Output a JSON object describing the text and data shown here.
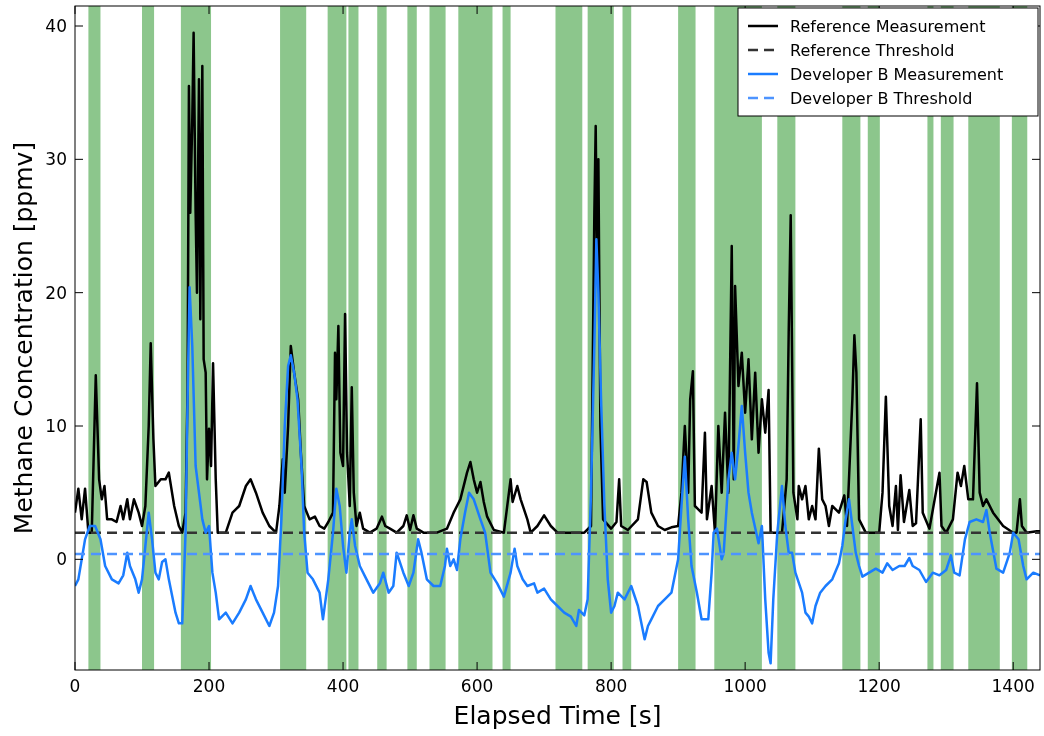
{
  "chart_data": {
    "type": "line",
    "xlabel": "Elapsed Time [s]",
    "ylabel": "Methane Concentration [ppmv]",
    "xlim": [
      0,
      1440
    ],
    "ylim": [
      -8.3,
      41.5
    ],
    "xticks": [
      0,
      200,
      400,
      600,
      800,
      1000,
      1200,
      1400
    ],
    "yticks": [
      0,
      10,
      20,
      30,
      40
    ],
    "grid": false,
    "legend": "top right",
    "bands": [
      {
        "axis": "x",
        "from": 20,
        "to": 38,
        "color": "#8cc68c"
      },
      {
        "axis": "x",
        "from": 100,
        "to": 118,
        "color": "#8cc68c"
      },
      {
        "axis": "x",
        "from": 158,
        "to": 203,
        "color": "#8cc68c"
      },
      {
        "axis": "x",
        "from": 306,
        "to": 345,
        "color": "#8cc68c"
      },
      {
        "axis": "x",
        "from": 377,
        "to": 405,
        "color": "#8cc68c"
      },
      {
        "axis": "x",
        "from": 408,
        "to": 423,
        "color": "#8cc68c"
      },
      {
        "axis": "x",
        "from": 451,
        "to": 465,
        "color": "#8cc68c"
      },
      {
        "axis": "x",
        "from": 496,
        "to": 510,
        "color": "#8cc68c"
      },
      {
        "axis": "x",
        "from": 529,
        "to": 553,
        "color": "#8cc68c"
      },
      {
        "axis": "x",
        "from": 572,
        "to": 623,
        "color": "#8cc68c"
      },
      {
        "axis": "x",
        "from": 638,
        "to": 650,
        "color": "#8cc68c"
      },
      {
        "axis": "x",
        "from": 717,
        "to": 757,
        "color": "#8cc68c"
      },
      {
        "axis": "x",
        "from": 765,
        "to": 804,
        "color": "#8cc68c"
      },
      {
        "axis": "x",
        "from": 817,
        "to": 830,
        "color": "#8cc68c"
      },
      {
        "axis": "x",
        "from": 900,
        "to": 926,
        "color": "#8cc68c"
      },
      {
        "axis": "x",
        "from": 954,
        "to": 1025,
        "color": "#8cc68c"
      },
      {
        "axis": "x",
        "from": 1048,
        "to": 1075,
        "color": "#8cc68c"
      },
      {
        "axis": "x",
        "from": 1145,
        "to": 1172,
        "color": "#8cc68c"
      },
      {
        "axis": "x",
        "from": 1183,
        "to": 1201,
        "color": "#8cc68c"
      },
      {
        "axis": "x",
        "from": 1272,
        "to": 1281,
        "color": "#8cc68c"
      },
      {
        "axis": "x",
        "from": 1292,
        "to": 1311,
        "color": "#8cc68c"
      },
      {
        "axis": "x",
        "from": 1333,
        "to": 1380,
        "color": "#8cc68c"
      },
      {
        "axis": "x",
        "from": 1398,
        "to": 1421,
        "color": "#8cc68c"
      }
    ],
    "series": [
      {
        "name": "Reference Measurement",
        "color": "#000000",
        "line_style": "solid",
        "x": [
          0,
          5,
          10,
          15,
          20,
          25,
          31,
          36,
          40,
          44,
          48,
          55,
          62,
          68,
          72,
          78,
          82,
          88,
          95,
          100,
          105,
          110,
          113,
          117,
          120,
          128,
          135,
          140,
          148,
          155,
          160,
          165,
          168,
          170,
          172,
          175,
          177,
          180,
          182,
          185,
          187,
          190,
          192,
          195,
          197,
          200,
          203,
          206,
          210,
          213,
          218,
          225,
          235,
          245,
          255,
          262,
          270,
          280,
          290,
          300,
          305,
          310,
          313,
          318,
          322,
          327,
          333,
          337,
          342,
          350,
          358,
          365,
          372,
          378,
          385,
          388,
          390,
          393,
          396,
          400,
          403,
          406,
          410,
          413,
          416,
          420,
          425,
          430,
          440,
          450,
          458,
          463,
          470,
          480,
          490,
          495,
          500,
          505,
          510,
          520,
          540,
          555,
          565,
          575,
          585,
          590,
          595,
          600,
          605,
          610,
          615,
          625,
          640,
          650,
          653,
          660,
          665,
          675,
          680,
          690,
          700,
          710,
          720,
          760,
          770,
          775,
          777,
          779,
          781,
          784,
          788,
          800,
          808,
          812,
          815,
          825,
          840,
          848,
          853,
          860,
          870,
          880,
          890,
          900,
          905,
          910,
          915,
          918,
          922,
          925,
          935,
          940,
          943,
          950,
          955,
          960,
          965,
          970,
          975,
          980,
          983,
          985,
          990,
          995,
          1000,
          1005,
          1010,
          1015,
          1020,
          1025,
          1030,
          1035,
          1038,
          1055,
          1062,
          1065,
          1068,
          1072,
          1078,
          1080,
          1085,
          1090,
          1095,
          1100,
          1105,
          1110,
          1115,
          1120,
          1125,
          1130,
          1140,
          1148,
          1152,
          1160,
          1163,
          1166,
          1170,
          1180,
          1200,
          1205,
          1210,
          1215,
          1220,
          1225,
          1228,
          1232,
          1237,
          1245,
          1250,
          1255,
          1262,
          1265,
          1275,
          1290,
          1293,
          1300,
          1310,
          1317,
          1322,
          1327,
          1333,
          1340,
          1346,
          1350,
          1355,
          1360,
          1370,
          1385,
          1400,
          1405,
          1410,
          1413,
          1420,
          1435,
          1440
        ],
        "values": [
          3.5,
          5.3,
          3,
          5.3,
          2,
          2,
          13.8,
          6,
          4.5,
          5.5,
          3,
          3,
          2.8,
          4,
          3,
          4.5,
          3,
          4.5,
          3.5,
          2.5,
          4,
          10,
          16.2,
          9,
          5.5,
          6,
          6,
          6.5,
          4,
          2.5,
          2,
          3.5,
          13,
          35.5,
          26,
          33,
          39.5,
          26,
          20,
          36,
          18,
          37,
          15,
          14,
          6,
          9.8,
          7,
          14.7,
          6,
          2,
          2,
          2,
          3.5,
          4,
          5.5,
          6,
          5,
          3.5,
          2.5,
          2,
          4,
          7.5,
          5,
          10,
          16,
          14,
          12,
          8,
          4,
          3,
          3.2,
          2.5,
          2.3,
          2.8,
          3.5,
          15.5,
          12,
          17.5,
          8,
          7,
          18.4,
          8,
          4,
          12.9,
          5,
          2.5,
          3.5,
          2.3,
          2,
          2.3,
          3.2,
          2.5,
          2.3,
          2,
          2.5,
          3.3,
          2.2,
          3.3,
          2.3,
          2,
          2,
          2.3,
          3.5,
          4.5,
          6.5,
          7.3,
          6,
          5,
          5.8,
          4.3,
          3.2,
          2.2,
          2,
          6,
          4.3,
          5.5,
          4.5,
          3,
          2,
          2.5,
          3.3,
          2.5,
          2,
          2,
          2.5,
          26,
          32.5,
          22,
          30,
          10,
          3,
          2.3,
          2.8,
          6,
          2.5,
          2.2,
          3,
          6,
          5.8,
          3.5,
          2.5,
          2.2,
          2.4,
          2.5,
          5,
          10,
          5,
          12,
          14.1,
          4,
          3.5,
          9.5,
          3,
          5.5,
          2,
          10,
          5,
          11,
          5,
          23.5,
          6,
          20.5,
          13,
          15.5,
          11,
          15,
          9,
          14,
          8,
          12,
          9.5,
          12.7,
          2,
          2,
          6,
          17,
          25.8,
          5,
          3,
          5.5,
          4.5,
          5.5,
          3,
          4,
          3,
          8.3,
          4.5,
          4,
          2.5,
          4,
          3.5,
          4.8,
          2.5,
          12,
          16.8,
          14,
          3,
          2,
          2,
          5,
          12.2,
          4,
          2.5,
          5.5,
          2.2,
          6.3,
          2.8,
          5.2,
          2.5,
          2.7,
          10.5,
          3.5,
          2.3,
          6.5,
          2.5,
          2,
          3,
          6.5,
          5.5,
          7,
          4.5,
          4.5,
          13.2,
          5,
          4,
          4.5,
          3.5,
          2.5,
          2,
          2,
          4.5,
          2.5,
          2,
          2.1,
          2.1
        ]
      },
      {
        "name": "Reference Threshold",
        "color": "#333333",
        "line_style": "dashed",
        "x": [
          0,
          1440
        ],
        "values": [
          2,
          2
        ]
      },
      {
        "name": "Developer B Measurement",
        "color": "#1a7cff",
        "line_style": "solid",
        "x": [
          0,
          5,
          10,
          15,
          22,
          30,
          38,
          45,
          55,
          65,
          72,
          78,
          82,
          90,
          95,
          100,
          105,
          110,
          115,
          120,
          125,
          130,
          135,
          140,
          150,
          155,
          160,
          165,
          168,
          171,
          175,
          180,
          185,
          190,
          195,
          200,
          205,
          210,
          215,
          225,
          235,
          245,
          255,
          262,
          270,
          280,
          290,
          297,
          303,
          308,
          313,
          318,
          322,
          327,
          332,
          338,
          342,
          347,
          355,
          365,
          370,
          378,
          385,
          390,
          395,
          400,
          405,
          410,
          413,
          418,
          425,
          435,
          445,
          455,
          460,
          468,
          475,
          480,
          490,
          498,
          505,
          512,
          517,
          525,
          535,
          545,
          552,
          555,
          560,
          565,
          570,
          575,
          582,
          588,
          595,
          605,
          612,
          620,
          630,
          640,
          650,
          656,
          660,
          668,
          675,
          685,
          690,
          700,
          710,
          720,
          730,
          740,
          748,
          752,
          760,
          765,
          770,
          775,
          778,
          781,
          785,
          790,
          795,
          800,
          805,
          810,
          820,
          830,
          840,
          850,
          855,
          860,
          870,
          880,
          890,
          900,
          905,
          910,
          915,
          920,
          928,
          935,
          945,
          950,
          953,
          958,
          965,
          968,
          975,
          980,
          985,
          990,
          995,
          1000,
          1005,
          1010,
          1020,
          1025,
          1030,
          1035,
          1038,
          1042,
          1048,
          1055,
          1060,
          1065,
          1070,
          1075,
          1085,
          1090,
          1095,
          1100,
          1105,
          1112,
          1120,
          1130,
          1140,
          1145,
          1150,
          1155,
          1160,
          1165,
          1170,
          1175,
          1185,
          1195,
          1205,
          1212,
          1220,
          1230,
          1238,
          1245,
          1250,
          1260,
          1270,
          1280,
          1290,
          1300,
          1307,
          1312,
          1320,
          1328,
          1335,
          1345,
          1355,
          1360,
          1365,
          1375,
          1385,
          1395,
          1400,
          1408,
          1415,
          1420,
          1430,
          1440
        ],
        "values": [
          -2,
          -1.5,
          0,
          1.5,
          2.5,
          2.5,
          1.5,
          -0.5,
          -1.5,
          -1.8,
          -1.2,
          0.5,
          -0.5,
          -1.5,
          -2.5,
          -1.5,
          1,
          3.5,
          1.5,
          -1,
          -1.5,
          -0.2,
          0,
          -1.5,
          -4,
          -4.8,
          -4.8,
          2,
          12,
          20.4,
          16,
          7,
          5,
          3,
          2,
          2.5,
          -1,
          -2.5,
          -4.5,
          -4,
          -4.8,
          -4,
          -3,
          -2,
          -3,
          -4,
          -5,
          -4,
          -2,
          3,
          10,
          14.5,
          15.3,
          14,
          12,
          7,
          2,
          -1,
          -1.5,
          -2.5,
          -4.5,
          -1.5,
          2,
          5.3,
          4,
          1,
          -1,
          2,
          3,
          1,
          -0.5,
          -1.5,
          -2.5,
          -1.8,
          -1,
          -2.5,
          -2,
          0.5,
          -1,
          -2,
          -1,
          1.5,
          0.5,
          -1.5,
          -2,
          -2,
          -0.5,
          0.8,
          -0.5,
          0,
          -0.8,
          1.5,
          3.5,
          5,
          4.5,
          3,
          2,
          -1,
          -1.8,
          -2.8,
          -1,
          0.8,
          -0.5,
          -1.5,
          -2,
          -1.8,
          -2.5,
          -2.2,
          -3,
          -3.5,
          -4,
          -4.3,
          -5,
          -3.8,
          -4.2,
          -3,
          5,
          16,
          24,
          20,
          12,
          4,
          -1.5,
          -4,
          -3.5,
          -2.5,
          -3,
          -2,
          -3.5,
          -6,
          -5,
          -4.5,
          -3.5,
          -3,
          -2.5,
          0,
          4,
          7.7,
          3,
          -0.5,
          -2.5,
          -4.5,
          -4.5,
          -1,
          2,
          2.3,
          0,
          0.5,
          6,
          8,
          6,
          8.5,
          11.5,
          8,
          5,
          3.5,
          1.2,
          2.5,
          -3,
          -7,
          -7.8,
          -3,
          2,
          5.5,
          2.5,
          0.5,
          0.5,
          -1,
          -2.5,
          -4,
          -4.3,
          -4.8,
          -3.5,
          -2.5,
          -2,
          -1.5,
          -0.3,
          1,
          3,
          4.5,
          2.5,
          0.5,
          -0.5,
          -1.3,
          -1,
          -0.7,
          -1,
          -0.3,
          -0.8,
          -0.5,
          -0.5,
          0.1,
          -0.5,
          -0.8,
          -1.7,
          -1,
          -1.2,
          -0.8,
          0.3,
          -1,
          -1.2,
          1.5,
          2.8,
          3,
          2.8,
          3.7,
          2,
          -0.7,
          -1,
          0.5,
          2,
          1.5,
          -0.5,
          -1.5,
          -1,
          -1.2
        ]
      },
      {
        "name": "Developer B Threshold",
        "color": "#4d94ff",
        "line_style": "dashed",
        "x": [
          0,
          1440
        ],
        "values": [
          0.4,
          0.4
        ]
      }
    ]
  }
}
